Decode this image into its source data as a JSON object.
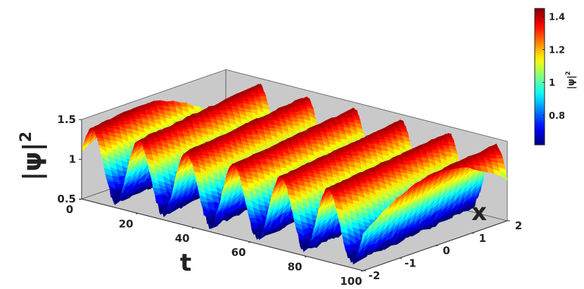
{
  "chart_data": {
    "type": "surface",
    "colormap": "jet",
    "x_axis": {
      "label": "t",
      "range": [
        0,
        100
      ],
      "ticks": [
        "0",
        "20",
        "40",
        "60",
        "80",
        "100"
      ]
    },
    "y_axis": {
      "label": "x",
      "range": [
        -2,
        2
      ],
      "ticks": [
        "-2",
        "-1",
        "0",
        "1",
        "2"
      ]
    },
    "z_axis": {
      "label": "|ψ|",
      "label_exponent": "2",
      "range": [
        0.5,
        1.5
      ],
      "ticks": [
        "0.5",
        "1",
        "1.5"
      ]
    },
    "colorbar": {
      "label": "|ψ|",
      "label_exponent": "2",
      "range": [
        0.62,
        1.45
      ],
      "ticks": [
        "0.8",
        "1",
        "1.2",
        "1.4"
      ]
    },
    "surface": {
      "mean": 1.0,
      "amplitude": 0.42,
      "t_period": 16.8,
      "t_phase": 12.0,
      "x_wavenumber": 0.785,
      "noise": 0.03
    },
    "grid": false,
    "background": "#c9c9c9"
  }
}
